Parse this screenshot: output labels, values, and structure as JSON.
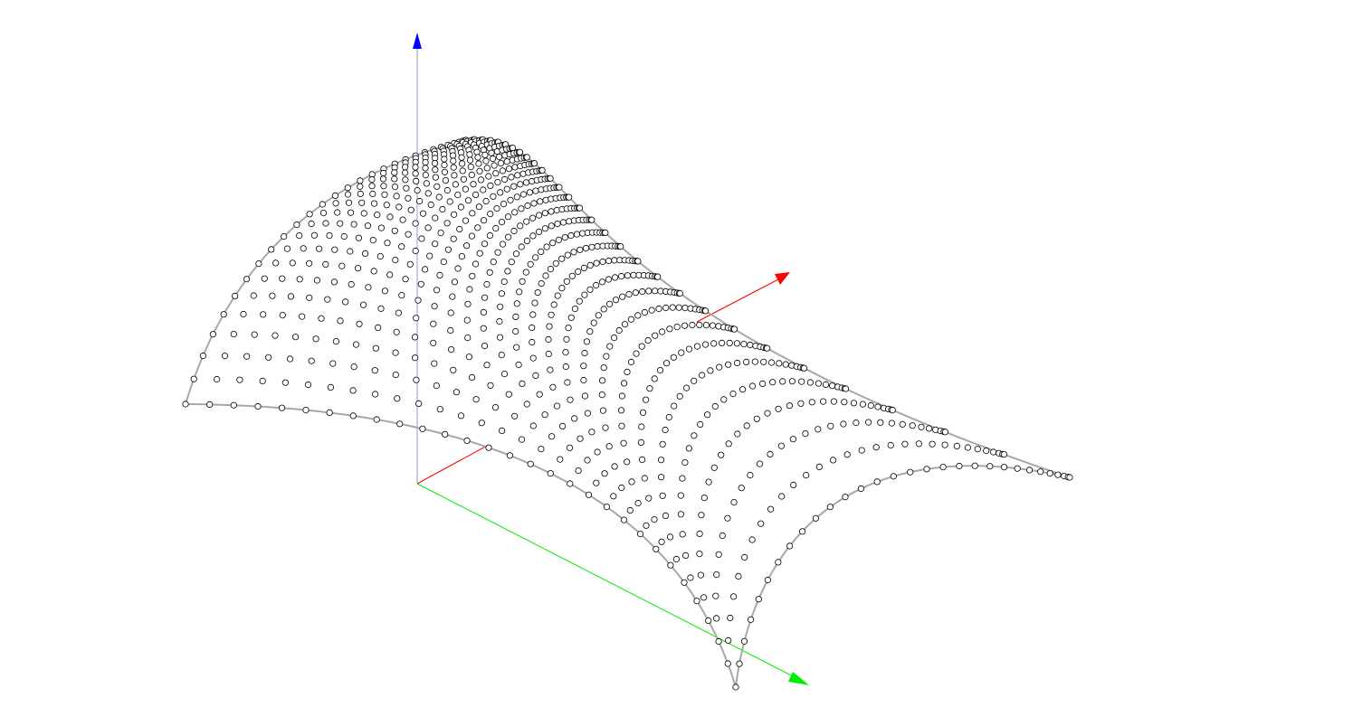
{
  "scene": {
    "background": "#ffffff",
    "axes": {
      "x": {
        "color": "#ff0000",
        "icon": "arrow-head-icon"
      },
      "y": {
        "color": "#00ee00",
        "icon": "arrow-head-icon"
      },
      "z": {
        "color": "#0000ff",
        "line_color": "#a8a8e0",
        "icon": "arrow-head-icon"
      }
    },
    "surface": {
      "point_fill": "#ffffff",
      "point_stroke": "#000000",
      "boundary_color": "#a8a8a8"
    }
  }
}
